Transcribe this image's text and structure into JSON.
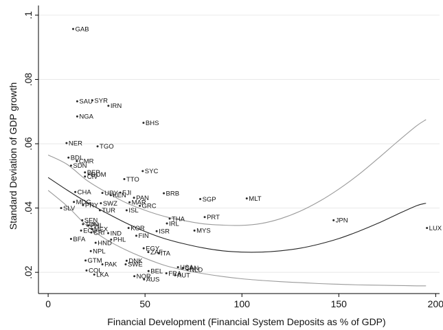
{
  "chart_data": {
    "type": "scatter",
    "title": "",
    "xlabel": "Financial Development (Financial System Deposits as % of GDP)",
    "ylabel": "Standard Deviation of GDP growth",
    "xlim": [
      -5,
      202
    ],
    "ylim": [
      0.0134,
      0.103
    ],
    "xticks": [
      0,
      50,
      100,
      150,
      200
    ],
    "yticks": [
      0.02,
      0.04,
      0.06,
      0.08,
      0.1
    ],
    "xtick_labels": [
      "0",
      "50",
      "100",
      "150",
      "200"
    ],
    "ytick_labels": [
      ".02",
      ".04",
      ".06",
      ".08",
      ".1"
    ],
    "grid": "horizontal",
    "legend": "none",
    "colors": {
      "background": "#ffffff",
      "plot_bg": "#ffffff",
      "grid": "#e8e8e8",
      "point": "#2b2b2b",
      "fit": "#222222",
      "ci": "#9a9a9a",
      "axis": "#000000"
    },
    "points": [
      {
        "label": "GAB",
        "x": 12.9,
        "y": 0.0957
      },
      {
        "label": "SAU",
        "x": 15.0,
        "y": 0.0732
      },
      {
        "label": "SYR",
        "x": 22.8,
        "y": 0.0735
      },
      {
        "label": "IRN",
        "x": 31.1,
        "y": 0.0718
      },
      {
        "label": "NGA",
        "x": 15.0,
        "y": 0.0685
      },
      {
        "label": "BHS",
        "x": 49.2,
        "y": 0.0665
      },
      {
        "label": "NER",
        "x": 9.5,
        "y": 0.0602
      },
      {
        "label": "TGO",
        "x": 25.5,
        "y": 0.0592
      },
      {
        "label": "BDI",
        "x": 10.5,
        "y": 0.0557
      },
      {
        "label": "CMR",
        "x": 14.8,
        "y": 0.0546
      },
      {
        "label": "SDN",
        "x": 11.8,
        "y": 0.0532
      },
      {
        "label": "SYC",
        "x": 48.8,
        "y": 0.0515
      },
      {
        "label": "BEP",
        "x": 19.0,
        "y": 0.0511
      },
      {
        "label": "DOM",
        "x": 21.0,
        "y": 0.0505
      },
      {
        "label": "CIV",
        "x": 19.0,
        "y": 0.0498
      },
      {
        "label": "TTO",
        "x": 39.3,
        "y": 0.049
      },
      {
        "label": "CHA",
        "x": 14.0,
        "y": 0.045
      },
      {
        "label": "URY",
        "x": 28.0,
        "y": 0.0447
      },
      {
        "label": "FJI",
        "x": 37.2,
        "y": 0.0448
      },
      {
        "label": "KEN",
        "x": 32.3,
        "y": 0.044
      },
      {
        "label": "BRB",
        "x": 59.7,
        "y": 0.0446
      },
      {
        "label": "PAN",
        "x": 44.3,
        "y": 0.0432
      },
      {
        "label": "MAR",
        "x": 42.0,
        "y": 0.0418
      },
      {
        "label": "GRC",
        "x": 47.3,
        "y": 0.0407
      },
      {
        "label": "SGP",
        "x": 78.5,
        "y": 0.0428
      },
      {
        "label": "MLT",
        "x": 102.5,
        "y": 0.043
      },
      {
        "label": "MDG",
        "x": 13.3,
        "y": 0.0419
      },
      {
        "label": "SWZ",
        "x": 27.2,
        "y": 0.0415
      },
      {
        "label": "PRY",
        "x": 18.0,
        "y": 0.0409
      },
      {
        "label": "SLV",
        "x": 6.7,
        "y": 0.04
      },
      {
        "label": "TUR",
        "x": 26.7,
        "y": 0.0393
      },
      {
        "label": "ISL",
        "x": 40.5,
        "y": 0.0393
      },
      {
        "label": "PRT",
        "x": 80.8,
        "y": 0.0372
      },
      {
        "label": "THA",
        "x": 62.7,
        "y": 0.0367
      },
      {
        "label": "JPN",
        "x": 147.3,
        "y": 0.0362
      },
      {
        "label": "SEN",
        "x": 17.6,
        "y": 0.0362
      },
      {
        "label": "IRL",
        "x": 61.3,
        "y": 0.0352
      },
      {
        "label": "TUN",
        "x": 18.0,
        "y": 0.035
      },
      {
        "label": "PHL",
        "x": 20.8,
        "y": 0.0346
      },
      {
        "label": "LUX",
        "x": 195.5,
        "y": 0.0338
      },
      {
        "label": "KOR",
        "x": 41.5,
        "y": 0.0338
      },
      {
        "label": "MEX",
        "x": 22.5,
        "y": 0.0335
      },
      {
        "label": "ECU",
        "x": 17.0,
        "y": 0.033
      },
      {
        "label": "MYS",
        "x": 75.5,
        "y": 0.033
      },
      {
        "label": "ISR",
        "x": 56.0,
        "y": 0.0328
      },
      {
        "label": "CRI",
        "x": 22.3,
        "y": 0.0324
      },
      {
        "label": "IND",
        "x": 31.0,
        "y": 0.0322
      },
      {
        "label": "FIN",
        "x": 45.5,
        "y": 0.0314
      },
      {
        "label": "BFA",
        "x": 11.8,
        "y": 0.0304
      },
      {
        "label": "PHL",
        "x": 32.5,
        "y": 0.0302
      },
      {
        "label": "HND",
        "x": 24.5,
        "y": 0.0292
      },
      {
        "label": "EGY",
        "x": 49.3,
        "y": 0.0275
      },
      {
        "label": "NPL",
        "x": 22.0,
        "y": 0.0266
      },
      {
        "label": "ZAF",
        "x": 51.7,
        "y": 0.0263
      },
      {
        "label": "ITA",
        "x": 57.0,
        "y": 0.026
      },
      {
        "label": "GTM",
        "x": 19.3,
        "y": 0.0237
      },
      {
        "label": "DNK",
        "x": 40.5,
        "y": 0.0236
      },
      {
        "label": "PAK",
        "x": 28.0,
        "y": 0.0225
      },
      {
        "label": "SWE",
        "x": 40.0,
        "y": 0.0225
      },
      {
        "label": "USA",
        "x": 67.0,
        "y": 0.0216
      },
      {
        "label": "CAN",
        "x": 69.5,
        "y": 0.0214
      },
      {
        "label": "NLD",
        "x": 72.0,
        "y": 0.0208
      },
      {
        "label": "COL",
        "x": 19.8,
        "y": 0.0206
      },
      {
        "label": "BEL",
        "x": 51.8,
        "y": 0.0204
      },
      {
        "label": "FRA",
        "x": 61.0,
        "y": 0.0197
      },
      {
        "label": "AUT",
        "x": 65.5,
        "y": 0.0191
      },
      {
        "label": "LKA",
        "x": 23.8,
        "y": 0.0193
      },
      {
        "label": "NOR",
        "x": 44.5,
        "y": 0.0188
      },
      {
        "label": "AUS",
        "x": 49.5,
        "y": 0.0178
      }
    ],
    "fit_lines": [
      {
        "role": "upper",
        "x": [
          0,
          10,
          20,
          30,
          40,
          50,
          60,
          70,
          80,
          90,
          100,
          110,
          120,
          130,
          140,
          150,
          160,
          170,
          180,
          190,
          195
        ],
        "y": [
          0.0565,
          0.0535,
          0.0486,
          0.0449,
          0.0417,
          0.0393,
          0.0374,
          0.0361,
          0.0351,
          0.0347,
          0.0346,
          0.0352,
          0.0367,
          0.039,
          0.0421,
          0.0459,
          0.0503,
          0.0553,
          0.0605,
          0.0655,
          0.0675
        ]
      },
      {
        "role": "fit",
        "x": [
          0,
          10,
          20,
          30,
          40,
          50,
          60,
          70,
          80,
          90,
          100,
          110,
          120,
          130,
          140,
          150,
          160,
          170,
          180,
          190,
          195
        ],
        "y": [
          0.0495,
          0.0455,
          0.0418,
          0.0385,
          0.0354,
          0.0327,
          0.0305,
          0.0289,
          0.0276,
          0.0267,
          0.0263,
          0.0263,
          0.0267,
          0.0275,
          0.0288,
          0.0305,
          0.0327,
          0.0352,
          0.038,
          0.0407,
          0.0415
        ]
      },
      {
        "role": "lower",
        "x": [
          0,
          10,
          20,
          30,
          40,
          50,
          60,
          70,
          80,
          90,
          100,
          110,
          120,
          130,
          140,
          150,
          160,
          170,
          180,
          190,
          195
        ],
        "y": [
          0.0455,
          0.0405,
          0.0345,
          0.0302,
          0.027,
          0.0244,
          0.0222,
          0.0207,
          0.0196,
          0.0187,
          0.018,
          0.0175,
          0.0171,
          0.0168,
          0.0165,
          0.0163,
          0.0161,
          0.016,
          0.0159,
          0.0158,
          0.0158
        ]
      }
    ]
  }
}
